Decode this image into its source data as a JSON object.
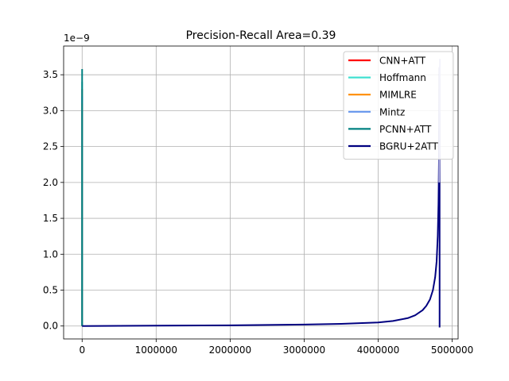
{
  "chart_data": {
    "type": "line",
    "title": "Precision-Recall Area=0.39",
    "xlabel": "",
    "ylabel": "",
    "y_scale_note": "1e−9",
    "xlim": [
      -250000,
      5080000
    ],
    "ylim": [
      -0.18,
      3.9
    ],
    "grid": true,
    "legend_position": "top-right",
    "x_ticks": [
      {
        "value": 0,
        "label": "0"
      },
      {
        "value": 1000000,
        "label": "1000000"
      },
      {
        "value": 2000000,
        "label": "2000000"
      },
      {
        "value": 3000000,
        "label": "3000000"
      },
      {
        "value": 4000000,
        "label": "4000000"
      },
      {
        "value": 5000000,
        "label": "5000000"
      }
    ],
    "y_ticks": [
      {
        "value": 0.0,
        "label": "0.0"
      },
      {
        "value": 0.5,
        "label": "0.5"
      },
      {
        "value": 1.0,
        "label": "1.0"
      },
      {
        "value": 1.5,
        "label": "1.5"
      },
      {
        "value": 2.0,
        "label": "2.0"
      },
      {
        "value": 2.5,
        "label": "2.5"
      },
      {
        "value": 3.0,
        "label": "3.0"
      },
      {
        "value": 3.5,
        "label": "3.5"
      }
    ],
    "series": [
      {
        "name": "CNN+ATT",
        "color": "#ff0000",
        "width": 2,
        "x": [
          0,
          0,
          0,
          0,
          0
        ],
        "y": [
          0.0,
          0.6,
          1.2,
          2.9,
          3.3
        ]
      },
      {
        "name": "Hoffmann",
        "color": "#40e0d0",
        "width": 2,
        "x": [
          0,
          0,
          0,
          0
        ],
        "y": [
          0.0,
          1.0,
          2.0,
          3.4
        ]
      },
      {
        "name": "MIMLRE",
        "color": "#ff8c00",
        "width": 2,
        "x": [
          0,
          0,
          0
        ],
        "y": [
          0.0,
          1.4,
          3.1
        ]
      },
      {
        "name": "Mintz",
        "color": "#6495ed",
        "width": 2,
        "x": [
          0,
          0,
          0
        ],
        "y": [
          0.0,
          1.8,
          3.2
        ]
      },
      {
        "name": "PCNN+ATT",
        "color": "#008080",
        "width": 2,
        "x": [
          0,
          0,
          0,
          0,
          0,
          0
        ],
        "y": [
          0.0,
          0.5,
          1.5,
          2.5,
          3.0,
          3.58
        ]
      },
      {
        "name": "BGRU+2ATT",
        "color": "#000080",
        "width": 2,
        "x": [
          0,
          1000000,
          2000000,
          3000000,
          3500000,
          4000000,
          4200000,
          4400000,
          4500000,
          4600000,
          4650000,
          4700000,
          4740000,
          4770000,
          4790000,
          4805000,
          4815000,
          4822000,
          4826000,
          4830000,
          4830000
        ],
        "y": [
          0.0,
          0.005,
          0.01,
          0.02,
          0.03,
          0.05,
          0.07,
          0.11,
          0.15,
          0.22,
          0.28,
          0.37,
          0.5,
          0.68,
          0.9,
          1.25,
          1.7,
          2.3,
          2.9,
          3.6,
          -0.02
        ]
      },
      {
        "name": "",
        "color": "#b0b0e0",
        "width": 2,
        "legend": false,
        "x": [
          4825000,
          4829000,
          4832000,
          4834000
        ],
        "y": [
          2.0,
          2.8,
          3.4,
          3.72
        ]
      }
    ]
  }
}
